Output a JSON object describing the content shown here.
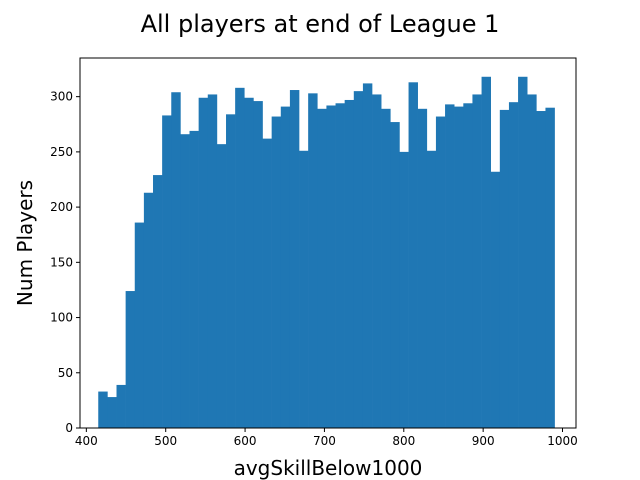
{
  "chart_data": {
    "type": "bar",
    "title": "All players at end of League 1",
    "xlabel": "avgSkillBelow1000",
    "ylabel": "Num Players",
    "xlim": [
      392,
      1017
    ],
    "ylim": [
      0,
      335
    ],
    "xticks": [
      400,
      500,
      600,
      700,
      800,
      900,
      1000
    ],
    "yticks": [
      0,
      50,
      100,
      150,
      200,
      250,
      300
    ],
    "bar_color": "#1f77b4",
    "bin_start": 415,
    "bin_width": 11.5,
    "values": [
      33,
      28,
      39,
      124,
      186,
      213,
      229,
      283,
      304,
      266,
      269,
      299,
      302,
      257,
      284,
      308,
      299,
      296,
      262,
      282,
      291,
      306,
      251,
      303,
      289,
      292,
      294,
      297,
      305,
      312,
      302,
      289,
      277,
      250,
      313,
      289,
      251,
      282,
      293,
      291,
      294,
      302,
      318,
      232,
      288,
      295,
      318,
      302,
      287,
      290
    ],
    "grid": false,
    "legend": "none"
  }
}
